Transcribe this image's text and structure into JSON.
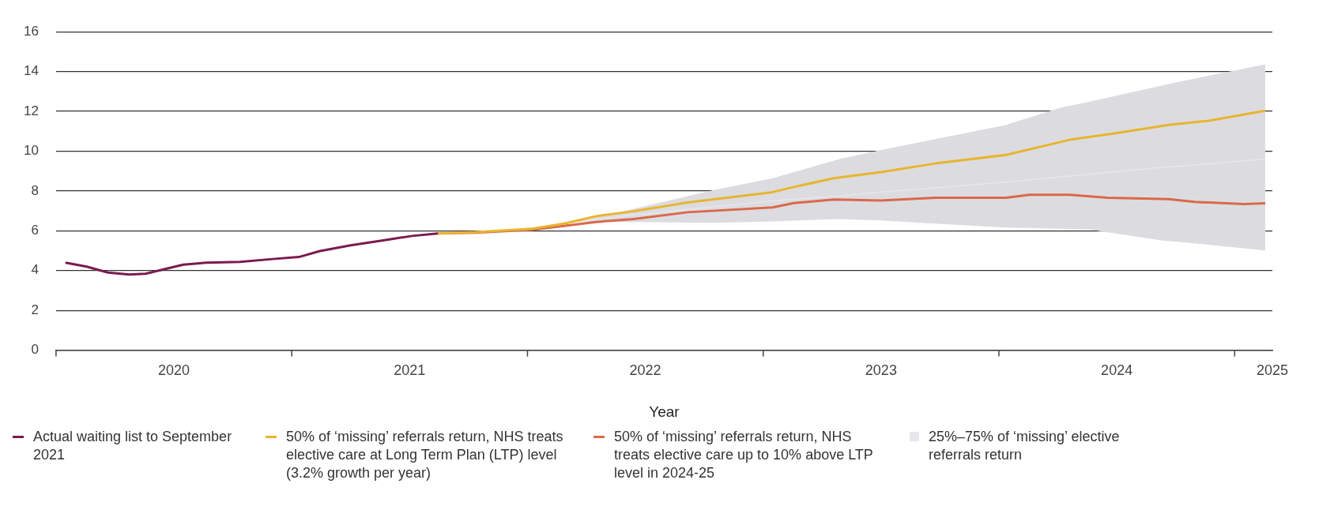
{
  "chart_data": {
    "type": "line",
    "xlabel": "Year",
    "xlim": [
      2020,
      2025.16
    ],
    "xticks": [
      {
        "value": 2020,
        "label": null
      },
      {
        "value": 2020.5,
        "label": "2020"
      },
      {
        "value": 2021,
        "label": null
      },
      {
        "value": 2021.5,
        "label": "2021"
      },
      {
        "value": 2022,
        "label": null
      },
      {
        "value": 2022.5,
        "label": "2022"
      },
      {
        "value": 2023,
        "label": null
      },
      {
        "value": 2023.5,
        "label": "2023"
      },
      {
        "value": 2024,
        "label": null
      },
      {
        "value": 2024.5,
        "label": "2024"
      },
      {
        "value": 2025,
        "label": null
      },
      {
        "value": 2025.16,
        "label": "2025"
      }
    ],
    "ylim": [
      0,
      16
    ],
    "yticks": [
      0,
      2,
      4,
      6,
      8,
      10,
      12,
      14,
      16
    ],
    "grid": "y",
    "legend": "bottom",
    "marker": "none",
    "series": [
      {
        "name": "25%–75% of ‘missing’ elective referrals return",
        "type": "line",
        "color": "#e6e6eb",
        "x": [
          2022.22,
          2022.45,
          2022.79,
          2023.04,
          2023.32,
          2023.5,
          2023.67,
          2024.03,
          2024.26,
          2024.39,
          2024.7,
          2024.77,
          2025.13
        ],
        "values": [
          6.45,
          6.8,
          7.2,
          7.5,
          7.75,
          7.95,
          8.1,
          8.45,
          8.7,
          8.85,
          9.2,
          9.25,
          9.6
        ],
        "lower": [
          6.45,
          6.44,
          6.4,
          6.47,
          6.59,
          6.52,
          6.4,
          6.16,
          6.1,
          6.05,
          5.5,
          5.44,
          5.01
        ],
        "upper": [
          6.45,
          7.1,
          8.05,
          8.64,
          9.59,
          10.06,
          10.47,
          11.32,
          12.18,
          12.5,
          13.32,
          13.5,
          14.36
        ]
      },
      {
        "name": "Actual waiting list to September 2021",
        "type": "line",
        "color": "#7b1a4f",
        "x": [
          2020.04,
          2020.13,
          2020.22,
          2020.31,
          2020.38,
          2020.47,
          2020.54,
          2020.64,
          2020.78,
          2020.92,
          2021.03,
          2021.12,
          2021.25,
          2021.41,
          2021.51,
          2021.62
        ],
        "values": [
          4.4,
          4.2,
          3.9,
          3.8,
          3.84,
          4.1,
          4.3,
          4.4,
          4.44,
          4.58,
          4.68,
          4.98,
          5.27,
          5.56,
          5.74,
          5.86
        ]
      },
      {
        "name": "50% of ‘missing’ referrals return, NHS treats elective care at Long Term Plan (LTP) level (3.2% growth per year)",
        "type": "line",
        "color": "#e8b530",
        "x": [
          2021.62,
          2021.78,
          2022.02,
          2022.16,
          2022.29,
          2022.45,
          2022.68,
          2023.04,
          2023.13,
          2023.3,
          2023.5,
          2023.73,
          2024.03,
          2024.3,
          2024.49,
          2024.72,
          2024.89,
          2025.13
        ],
        "values": [
          5.86,
          5.93,
          6.1,
          6.37,
          6.73,
          6.98,
          7.42,
          7.94,
          8.2,
          8.64,
          8.95,
          9.38,
          9.81,
          10.57,
          10.89,
          11.32,
          11.53,
          12.03
        ]
      },
      {
        "name": "50% of ‘missing’ referrals return, NHS treats elective care up to 10% above LTP level in 2024-25",
        "type": "line",
        "color": "#d9694a",
        "x": [
          2021.62,
          2021.78,
          2022.02,
          2022.16,
          2022.29,
          2022.45,
          2022.68,
          2023.04,
          2023.13,
          2023.3,
          2023.5,
          2023.73,
          2024.03,
          2024.13,
          2024.3,
          2024.46,
          2024.72,
          2024.83,
          2025.04,
          2025.13
        ],
        "values": [
          5.86,
          5.9,
          6.05,
          6.25,
          6.44,
          6.59,
          6.93,
          7.17,
          7.39,
          7.57,
          7.52,
          7.66,
          7.66,
          7.81,
          7.81,
          7.66,
          7.59,
          7.45,
          7.34,
          7.38
        ]
      }
    ]
  }
}
